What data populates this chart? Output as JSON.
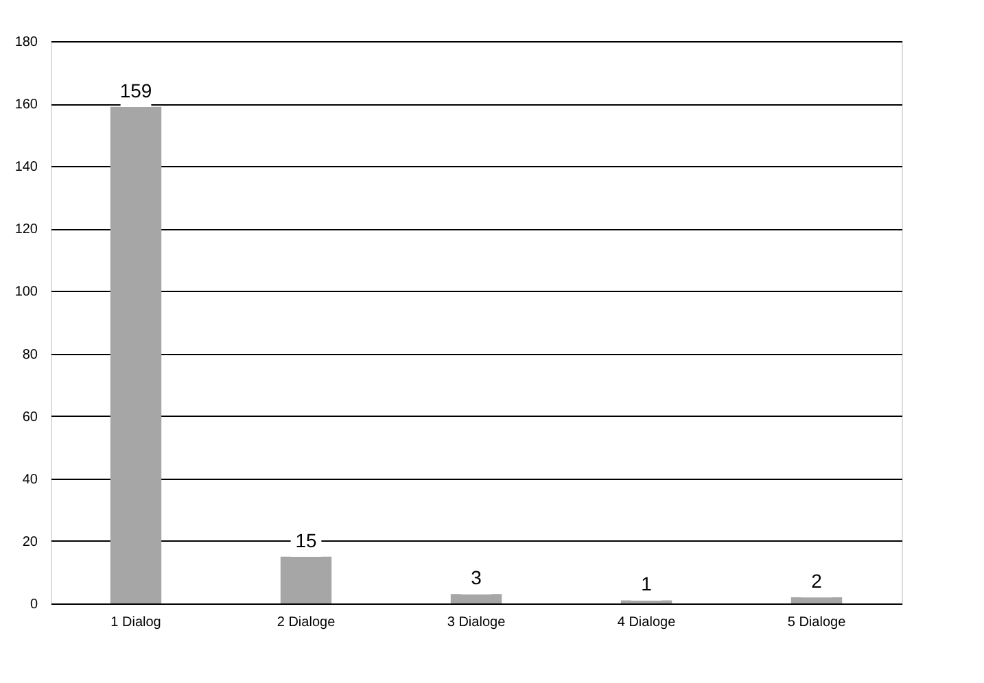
{
  "chart_data": {
    "type": "bar",
    "categories": [
      "1 Dialog",
      "2 Dialoge",
      "3 Dialoge",
      "4 Dialoge",
      "5 Dialoge"
    ],
    "values": [
      159,
      15,
      3,
      1,
      2
    ],
    "color": "#a6a6a6",
    "ylim": [
      0,
      180
    ],
    "yticks": [
      0,
      20,
      40,
      60,
      80,
      100,
      120,
      140,
      160,
      180
    ],
    "grid": "y",
    "data_labels": true
  }
}
